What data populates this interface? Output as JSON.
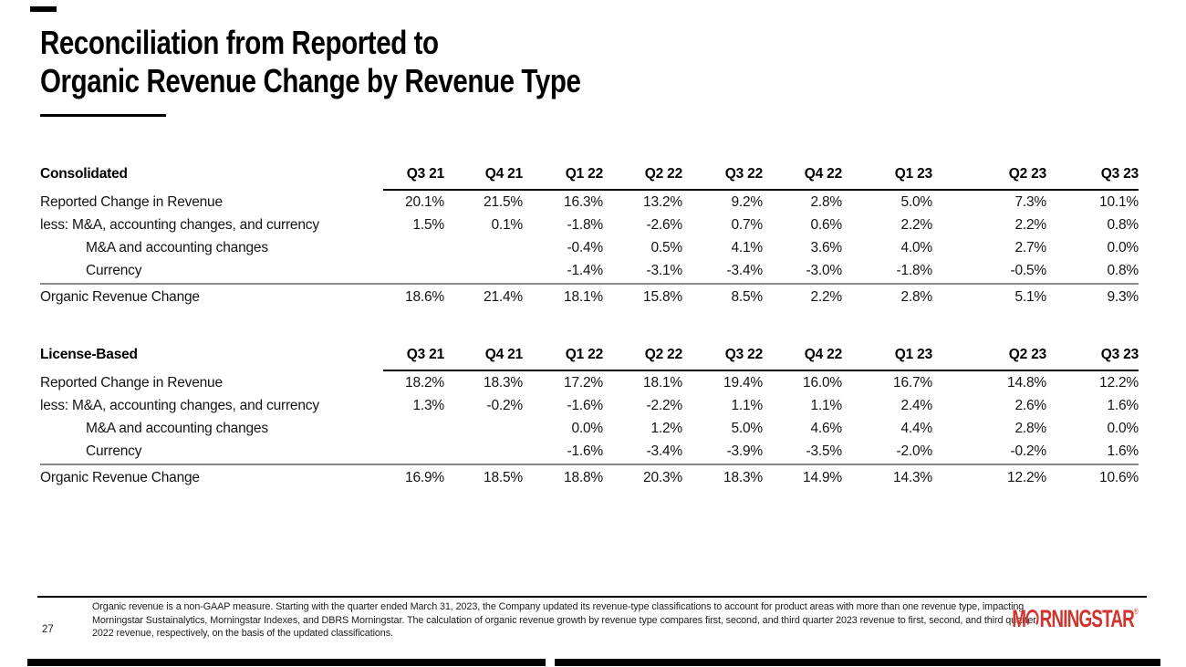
{
  "slide_title": {
    "line1": "Reconciliation from Reported to",
    "line2": "Organic Revenue Change by Revenue Type"
  },
  "columns": [
    "Q3 21",
    "Q4 21",
    "Q1 22",
    "Q2 22",
    "Q3 22",
    "Q4 22",
    "Q1 23",
    "Q2 23",
    "Q3 23"
  ],
  "tables": [
    {
      "name": "Consolidated",
      "rows": [
        {
          "label": "Reported Change in Revenue",
          "indent": false,
          "values": [
            "20.1%",
            "21.5%",
            "16.3%",
            "13.2%",
            "9.2%",
            "2.8%",
            "5.0%",
            "7.3%",
            "10.1%"
          ]
        },
        {
          "label": "less: M&A, accounting changes, and currency",
          "indent": false,
          "values": [
            "1.5%",
            "0.1%",
            "-1.8%",
            "-2.6%",
            "0.7%",
            "0.6%",
            "2.2%",
            "2.2%",
            "0.8%"
          ]
        },
        {
          "label": "M&A and accounting changes",
          "indent": true,
          "values": [
            "",
            "",
            "-0.4%",
            "0.5%",
            "4.1%",
            "3.6%",
            "4.0%",
            "2.7%",
            "0.0%"
          ]
        },
        {
          "label": "Currency",
          "indent": true,
          "values": [
            "",
            "",
            "-1.4%",
            "-3.1%",
            "-3.4%",
            "-3.0%",
            "-1.8%",
            "-0.5%",
            "0.8%"
          ]
        }
      ],
      "total_row": {
        "label": "Organic Revenue Change",
        "values": [
          "18.6%",
          "21.4%",
          "18.1%",
          "15.8%",
          "8.5%",
          "2.2%",
          "2.8%",
          "5.1%",
          "9.3%"
        ]
      }
    },
    {
      "name": "License-Based",
      "rows": [
        {
          "label": "Reported Change in Revenue",
          "indent": false,
          "values": [
            "18.2%",
            "18.3%",
            "17.2%",
            "18.1%",
            "19.4%",
            "16.0%",
            "16.7%",
            "14.8%",
            "12.2%"
          ]
        },
        {
          "label": "less: M&A, accounting changes, and currency",
          "indent": false,
          "values": [
            "1.3%",
            "-0.2%",
            "-1.6%",
            "-2.2%",
            "1.1%",
            "1.1%",
            "2.4%",
            "2.6%",
            "1.6%"
          ]
        },
        {
          "label": "M&A and accounting changes",
          "indent": true,
          "values": [
            "",
            "",
            "0.0%",
            "1.2%",
            "5.0%",
            "4.6%",
            "4.4%",
            "2.8%",
            "0.0%"
          ]
        },
        {
          "label": "Currency",
          "indent": true,
          "values": [
            "",
            "",
            "-1.6%",
            "-3.4%",
            "-3.9%",
            "-3.5%",
            "-2.0%",
            "-0.2%",
            "1.6%"
          ]
        }
      ],
      "total_row": {
        "label": "Organic Revenue Change",
        "values": [
          "16.9%",
          "18.5%",
          "18.8%",
          "20.3%",
          "18.3%",
          "14.9%",
          "14.3%",
          "12.2%",
          "10.6%"
        ]
      }
    }
  ],
  "footer": {
    "page_number": "27",
    "footnote_lines": [
      "Organic revenue is a non-GAAP measure. Starting with the quarter ended March 31, 2023, the Company updated its revenue-type classifications to account for product areas with more than one revenue type, impacting",
      "Morningstar Sustainalytics, Morningstar Indexes, and DBRS Morningstar. The calculation of organic revenue growth by revenue type compares first, second, and third quarter 2023 revenue to first, second, and third quarter",
      "2022 revenue, respectively, on the basis of the updated classifications."
    ],
    "logo": {
      "text_before_o": "M",
      "text_after_o": "RNINGSTAR",
      "registered_mark": "®",
      "color": "#d0342c"
    }
  },
  "decor": {
    "bar_color": "#000000"
  }
}
